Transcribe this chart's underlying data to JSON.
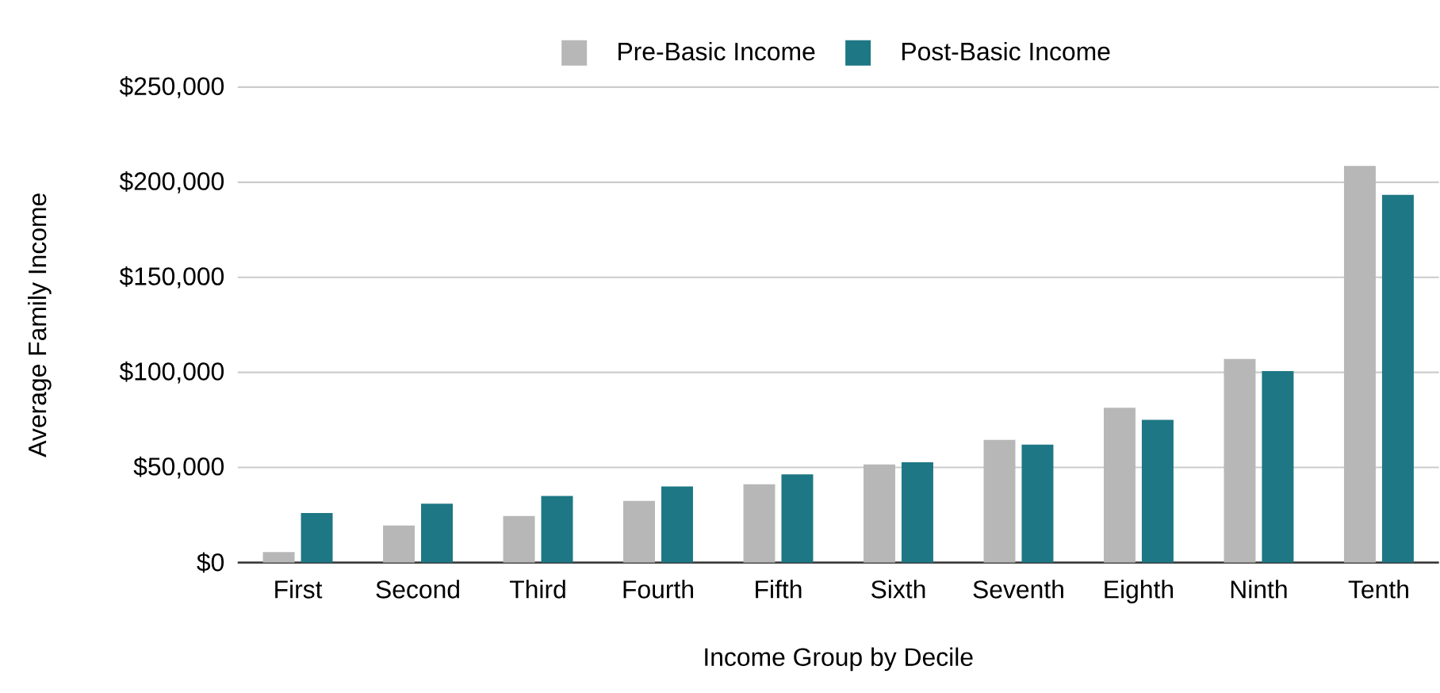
{
  "chart_data": {
    "type": "bar",
    "xlabel": "Income Group by Decile",
    "ylabel": "Average Family Income",
    "categories": [
      "First",
      "Second",
      "Third",
      "Fourth",
      "Fifth",
      "Sixth",
      "Seventh",
      "Eighth",
      "Ninth",
      "Tenth"
    ],
    "series": [
      {
        "name": "Pre-Basic Income",
        "color": "#b7b7b7",
        "values": [
          5500,
          19500,
          24500,
          32400,
          41200,
          51600,
          64500,
          81400,
          107000,
          208600
        ]
      },
      {
        "name": "Post-Basic Income",
        "color": "#1e7785",
        "values": [
          26000,
          31000,
          35000,
          40000,
          46400,
          52700,
          62000,
          75000,
          100700,
          193400
        ]
      }
    ],
    "ylim": [
      0,
      250000
    ],
    "yticks": [
      {
        "value": 0,
        "label": "$0"
      },
      {
        "value": 50000,
        "label": "$50,000"
      },
      {
        "value": 100000,
        "label": "$100,000"
      },
      {
        "value": 150000,
        "label": "$150,000"
      },
      {
        "value": 200000,
        "label": "$200,000"
      },
      {
        "value": 250000,
        "label": "$250,000"
      }
    ],
    "grid": "y",
    "legend": "top"
  }
}
